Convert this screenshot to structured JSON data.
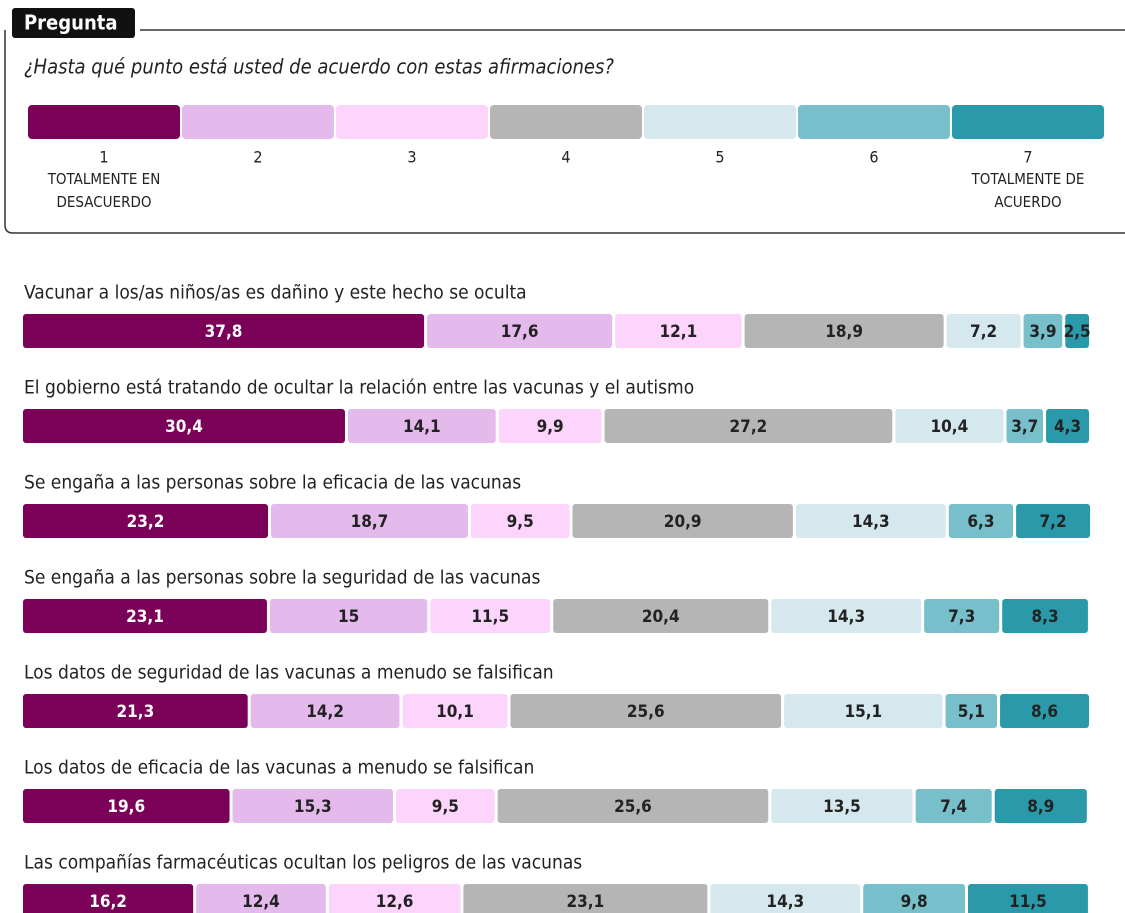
{
  "chart_data": {
    "type": "bar",
    "orientation": "horizontal",
    "stacked": true,
    "title": "Pregunta",
    "subtitle": "¿Hasta qué punto está usted de acuerdo con estas afirmaciones?",
    "legend_labels": [
      "TOTALMENTE EN DESACUERDO",
      "TOTALMENTE DE ACUERDO"
    ],
    "xlim": [
      0,
      100
    ],
    "categories": [
      "Vacunar a los/as niños/as es dañino y este hecho se oculta",
      "El gobierno está tratando de ocultar la relación entre las vacunas y el autismo",
      "Se engaña a las personas sobre la eficacia de las vacunas",
      "Se engaña a las personas sobre la seguridad de las vacunas",
      "Los datos de seguridad de las vacunas a menudo se falsifican",
      "Los datos de eficacia de las vacunas a menudo se falsifican",
      "Las compañías farmacéuticas ocultan los peligros de las vacunas"
    ],
    "series": [
      {
        "name": "1",
        "color": "#7b0057",
        "values": [
          37.8,
          30.4,
          23.2,
          23.1,
          21.3,
          19.6,
          16.2
        ],
        "value_labels": [
          "37,8",
          "30,4",
          "23,2",
          "23,1",
          "21,3",
          "19,6",
          "16,2"
        ]
      },
      {
        "name": "2",
        "color": "#e4b9ec",
        "values": [
          17.6,
          14.1,
          18.7,
          15,
          14.2,
          15.3,
          12.4
        ],
        "value_labels": [
          "17,6",
          "14,1",
          "18,7",
          "15",
          "14,2",
          "15,3",
          "12,4"
        ]
      },
      {
        "name": "3",
        "color": "#fcd4fc",
        "values": [
          12.1,
          9.9,
          9.5,
          11.5,
          10.1,
          9.5,
          12.6
        ],
        "value_labels": [
          "12,1",
          "9,9",
          "9,5",
          "11,5",
          "10,1",
          "9,5",
          "12,6"
        ]
      },
      {
        "name": "4",
        "color": "#b5b5b5",
        "values": [
          18.9,
          27.2,
          20.9,
          20.4,
          25.6,
          25.6,
          23.1
        ],
        "value_labels": [
          "18,9",
          "27,2",
          "20,9",
          "20,4",
          "25,6",
          "25,6",
          "23,1"
        ]
      },
      {
        "name": "5",
        "color": "#d5e8ee",
        "values": [
          7.2,
          10.4,
          14.3,
          14.3,
          15.1,
          13.5,
          14.3
        ],
        "value_labels": [
          "7,2",
          "10,4",
          "14,3",
          "14,3",
          "15,1",
          "13,5",
          "14,3"
        ]
      },
      {
        "name": "6",
        "color": "#76bfcb",
        "values": [
          3.9,
          3.7,
          6.3,
          7.3,
          5.1,
          7.4,
          9.8
        ],
        "value_labels": [
          "3,9",
          "3,7",
          "6,3",
          "7,3",
          "5,1",
          "7,4",
          "9,8"
        ]
      },
      {
        "name": "7",
        "color": "#2a9aab",
        "values": [
          2.5,
          4.3,
          7.2,
          8.3,
          8.6,
          8.9,
          11.5
        ],
        "value_labels": [
          "2,5",
          "4,3",
          "7,2",
          "8,3",
          "8,6",
          "8,9",
          "11,5"
        ]
      }
    ]
  }
}
